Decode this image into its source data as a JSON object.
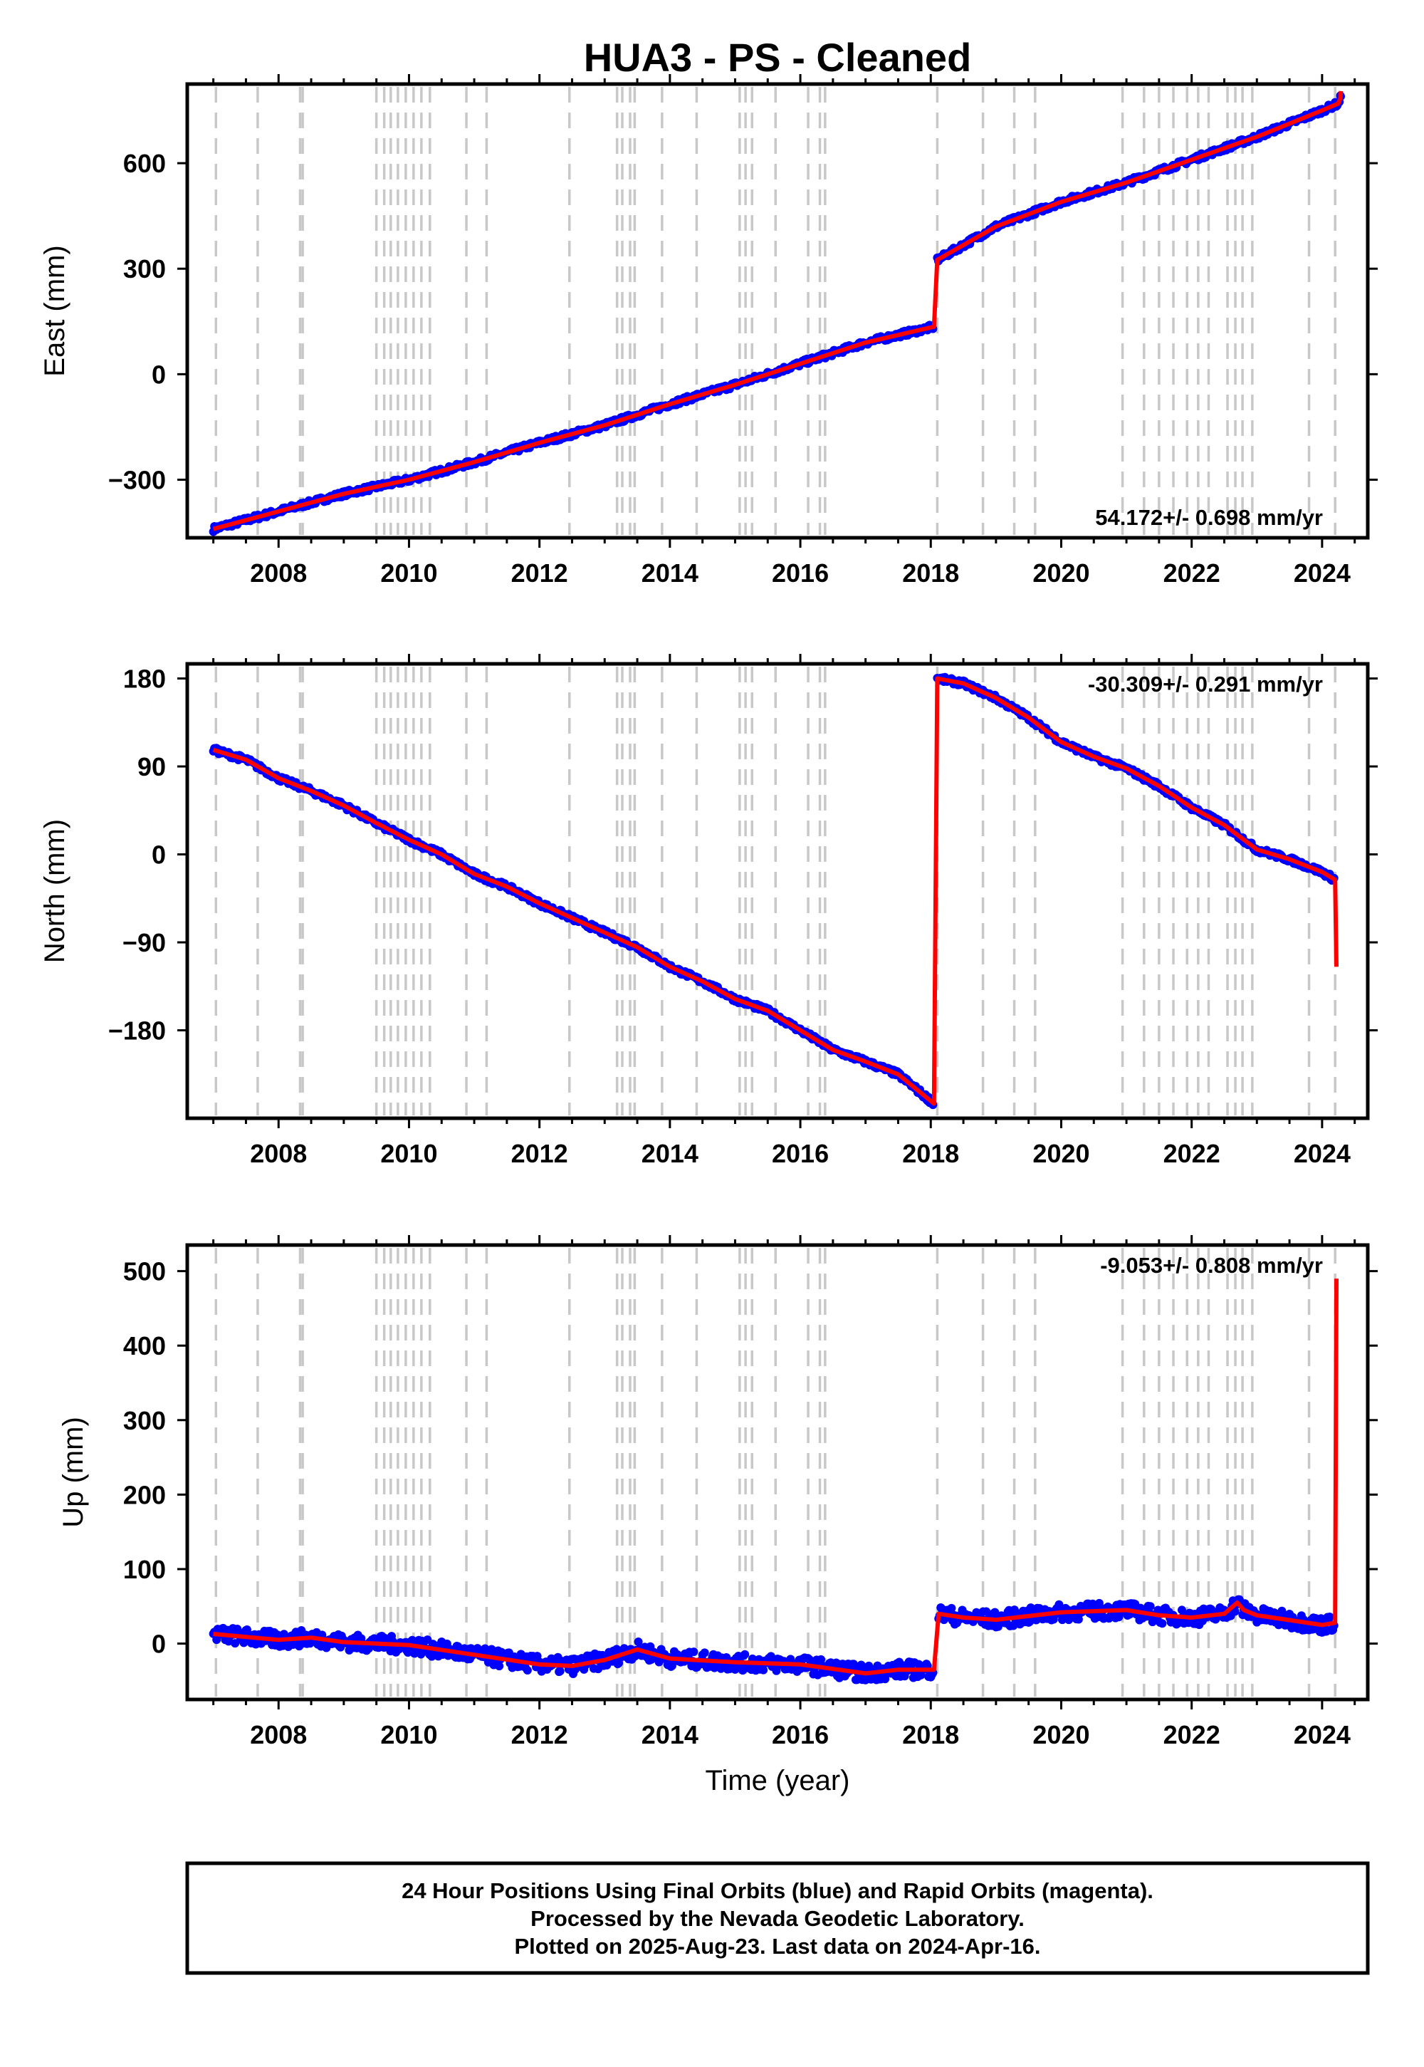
{
  "chart_data": {
    "type": "line",
    "title": "HUA3  - PS - Cleaned",
    "xlabel": "Time (year)",
    "xlim": [
      2006.6,
      2024.7
    ],
    "x_ticks": [
      2008,
      2010,
      2012,
      2014,
      2016,
      2018,
      2020,
      2022,
      2024
    ],
    "x_tick_labels": [
      "2008",
      "2010",
      "2012",
      "2014",
      "2016",
      "2018",
      "2020",
      "2022",
      "2024"
    ],
    "event_lines": [
      2007.04,
      2007.68,
      2008.33,
      2008.37,
      2009.5,
      2009.62,
      2009.72,
      2009.83,
      2009.95,
      2010.07,
      2010.19,
      2010.32,
      2010.88,
      2011.19,
      2012.46,
      2013.19,
      2013.27,
      2013.39,
      2013.46,
      2013.88,
      2014.41,
      2015.07,
      2015.16,
      2015.26,
      2015.62,
      2016.12,
      2016.3,
      2016.38,
      2018.1,
      2018.8,
      2019.28,
      2019.6,
      2020.94,
      2021.27,
      2021.5,
      2021.72,
      2021.93,
      2022.1,
      2022.26,
      2022.55,
      2022.67,
      2022.78,
      2022.93,
      2023.8,
      2024.2
    ],
    "panels": [
      {
        "ylabel": "East (mm)",
        "ylim": [
          -465,
          825
        ],
        "y_ticks": [
          -300,
          0,
          300,
          600
        ],
        "y_tick_labels": [
          "−300",
          "0",
          "300",
          "600"
        ],
        "rate_text": "54.172+/- 0.698 mm/yr",
        "series": [
          {
            "x": [
              2007.0,
              2008.0,
              2009.0,
              2010.0,
              2011.0,
              2012.0,
              2013.0,
              2014.0,
              2015.0,
              2016.0,
              2017.0,
              2018.05,
              2018.1,
              2019.0,
              2020.0,
              2021.0,
              2022.0,
              2023.0,
              2024.0,
              2024.25,
              2024.28,
              2024.29
            ],
            "y": [
              -440,
              -390,
              -340,
              -300,
              -250,
              -195,
              -145,
              -85,
              -30,
              30,
              90,
              135,
              325,
              420,
              490,
              545,
              610,
              675,
              750,
              770,
              785,
              805
            ]
          }
        ]
      },
      {
        "ylabel": "North (mm)",
        "ylim": [
          -270,
          195
        ],
        "y_ticks": [
          -180,
          -90,
          0,
          90,
          180
        ],
        "y_tick_labels": [
          "−180",
          "−90",
          "0",
          "90",
          "180"
        ],
        "rate_text": "-30.309+/- 0.291 mm/yr",
        "series": [
          {
            "x": [
              2007.0,
              2007.5,
              2008.0,
              2008.5,
              2009.0,
              2009.5,
              2010.0,
              2010.5,
              2011.0,
              2011.5,
              2012.0,
              2012.5,
              2013.0,
              2013.5,
              2014.0,
              2014.5,
              2015.0,
              2015.5,
              2016.0,
              2016.5,
              2017.0,
              2017.5,
              2018.05,
              2018.1,
              2018.5,
              2019.0,
              2019.5,
              2020.0,
              2020.5,
              2021.0,
              2021.5,
              2022.0,
              2022.5,
              2023.0,
              2023.5,
              2024.0,
              2024.2,
              2024.22
            ],
            "y": [
              107,
              97,
              78,
              65,
              50,
              32,
              15,
              0,
              -20,
              -33,
              -50,
              -65,
              -80,
              -95,
              -115,
              -130,
              -148,
              -160,
              -180,
              -200,
              -212,
              -225,
              -255,
              180,
              175,
              160,
              140,
              115,
              100,
              88,
              70,
              48,
              30,
              5,
              -5,
              -18,
              -26,
              -115
            ]
          }
        ]
      },
      {
        "ylabel": "Up (mm)",
        "ylim": [
          -75,
          535
        ],
        "y_ticks": [
          0,
          100,
          200,
          300,
          400,
          500
        ],
        "y_tick_labels": [
          "0",
          "100",
          "200",
          "300",
          "400",
          "500"
        ],
        "rate_text": "-9.053+/- 0.808 mm/yr",
        "series": [
          {
            "x": [
              2007.0,
              2008.0,
              2008.5,
              2009.0,
              2010.0,
              2011.0,
              2012.0,
              2012.5,
              2013.0,
              2013.5,
              2014.0,
              2015.0,
              2016.0,
              2017.0,
              2017.5,
              2018.05,
              2018.12,
              2018.5,
              2019.0,
              2020.0,
              2021.0,
              2021.5,
              2022.0,
              2022.5,
              2022.7,
              2022.8,
              2023.0,
              2024.0,
              2024.2,
              2024.22
            ],
            "y": [
              13,
              5,
              8,
              2,
              -2,
              -15,
              -28,
              -30,
              -22,
              -8,
              -20,
              -25,
              -28,
              -40,
              -35,
              -35,
              40,
              35,
              32,
              42,
              45,
              38,
              35,
              40,
              55,
              45,
              38,
              25,
              28,
              490
            ]
          }
        ]
      }
    ]
  },
  "footer": {
    "line1": "24 Hour Positions Using Final Orbits (blue) and Rapid Orbits (magenta).",
    "line2": "Processed by the Nevada Geodetic Laboratory.",
    "line3": "Plotted on 2025-Aug-23. Last data on 2024-Apr-16."
  },
  "colors": {
    "data_points": "#0000ff",
    "model_line": "#ff0000",
    "event_lines": "#c8c8c8",
    "frame": "#000000"
  }
}
